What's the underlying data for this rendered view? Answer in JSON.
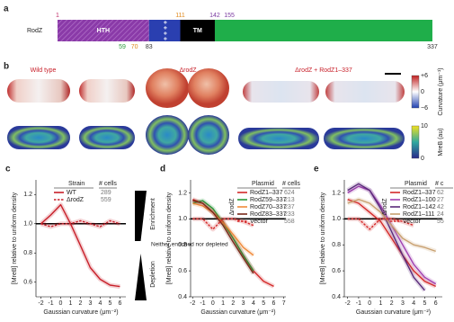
{
  "panel_a": {
    "label": "a",
    "protein": "RodZ",
    "top_positions": [
      {
        "value": 1,
        "color": "#c0306a"
      },
      {
        "value": 111,
        "color": "#e08a1e"
      },
      {
        "value": 142,
        "color": "#7a3aa0"
      },
      {
        "value": 155,
        "color": "#7a3aa0"
      }
    ],
    "bottom_positions": [
      {
        "value": 59,
        "color": "#2a9a3a"
      },
      {
        "value": 70,
        "color": "#e08a1e"
      },
      {
        "value": 83,
        "color": "#333333"
      },
      {
        "value": 337,
        "color": "#333333"
      }
    ],
    "domains": [
      {
        "label": "HTH",
        "color": "#8a3aa8"
      },
      {
        "label": "+ + + +",
        "color": "#2a3fb0"
      },
      {
        "label": "TM",
        "color": "#000000"
      },
      {
        "label": null,
        "color": "#1fae4a"
      }
    ]
  },
  "panel_b": {
    "label": "b",
    "conditions": [
      "Wild type",
      "ΔrodZ",
      "ΔrodZ + RodZ1–337"
    ],
    "curvature_bar": {
      "ticks": [
        "+6",
        "0",
        "−6"
      ],
      "title": "Curvature (μm⁻¹)"
    },
    "mreb_bar": {
      "ticks": [
        "10",
        "0"
      ],
      "title": "MreB (au)"
    }
  },
  "chart_data": [
    {
      "type": "line",
      "panel": "c",
      "xlabel": "Gaussian curvature (μm⁻²)",
      "ylabel": "[MreB] relative to uniform density",
      "x": [
        -2,
        -1,
        0,
        1,
        2,
        3,
        4,
        5,
        6
      ],
      "xlim": [
        -2.5,
        6.6
      ],
      "xticks": [
        -2,
        -1,
        0,
        1,
        2,
        3,
        4,
        5,
        6
      ],
      "ylim": [
        0.5,
        1.3
      ],
      "yticks": [
        0.6,
        0.8,
        {
          "value": 1,
          "label": "1.0"
        },
        1.2
      ],
      "reference_line": 1,
      "legend_title": "Strain",
      "legend_count_title": "# cells",
      "annotations": [
        "Enrichment",
        "Neither enriched nor depleted",
        "Depletion"
      ],
      "series": [
        {
          "name": "WT",
          "color": "#c8202a",
          "dash": false,
          "cells": 289,
          "values": [
            1.0,
            1.06,
            1.13,
            1.0,
            0.85,
            0.7,
            0.62,
            0.58,
            0.57
          ]
        },
        {
          "name": "ΔrodZ",
          "color": "#c8202a",
          "dash": true,
          "cells": 559,
          "values": [
            1.0,
            0.98,
            1.0,
            1.0,
            1.02,
            1.0,
            0.98,
            1.02,
            1.0
          ]
        }
      ]
    },
    {
      "type": "line",
      "panel": "d",
      "xlabel": "Gaussian curvature (μm⁻²)",
      "ylabel": "[MreB] relative to uniform density",
      "x": [
        -2,
        -1,
        0,
        1,
        2,
        3,
        4,
        5,
        6
      ],
      "xlim": [
        -2.2,
        7.2
      ],
      "xticks": [
        -2,
        -1,
        0,
        1,
        2,
        3,
        4,
        5,
        6,
        7
      ],
      "ylim": [
        0.4,
        1.3
      ],
      "yticks": [
        0.4,
        0.6,
        0.8,
        {
          "value": 1,
          "label": "1.0"
        },
        1.2
      ],
      "reference_line": 1,
      "legend_title": "Plasmid",
      "legend_count_title": "# cells",
      "vertical_label": "ΔrodZ",
      "series": [
        {
          "name": "RodZ1–337",
          "color": "#d42a2a",
          "dash": false,
          "cells": 624,
          "values": [
            1.15,
            1.12,
            1.05,
            0.98,
            0.85,
            0.72,
            0.6,
            0.52,
            0.48
          ]
        },
        {
          "name": "RodZ59–337",
          "color": "#2a9a3a",
          "dash": false,
          "cells": 213,
          "values": [
            1.12,
            1.14,
            1.08,
            0.97,
            0.85,
            0.72,
            0.6,
            null,
            null
          ]
        },
        {
          "name": "RodZ70–337",
          "color": "#f08a3a",
          "dash": false,
          "cells": 237,
          "values": [
            1.12,
            1.1,
            1.05,
            0.97,
            0.88,
            0.78,
            0.72,
            null,
            null
          ]
        },
        {
          "name": "RodZ83–337",
          "color": "#7a2a1a",
          "dash": false,
          "cells": 233,
          "values": [
            1.14,
            1.12,
            1.05,
            0.95,
            0.82,
            0.7,
            0.58,
            null,
            null
          ]
        },
        {
          "name": "Vector",
          "color": "#d42a2a",
          "dash": true,
          "cells": 558,
          "values": [
            1.0,
            1.0,
            0.92,
            1.0,
            1.0,
            0.98,
            0.95,
            null,
            null
          ]
        }
      ]
    },
    {
      "type": "line",
      "panel": "e",
      "xlabel": "Gaussian curvature (μm⁻²)",
      "ylabel": "[MreB] relative to uniform density",
      "x": [
        -2,
        -1,
        0,
        1,
        2,
        3,
        4,
        5,
        6
      ],
      "xlim": [
        -2.3,
        6.6
      ],
      "xticks": [
        -2,
        -1,
        0,
        1,
        2,
        3,
        4,
        5,
        6
      ],
      "ylim": [
        0.4,
        1.3
      ],
      "yticks": [
        0.4,
        0.6,
        0.8,
        {
          "value": 1,
          "label": "1.0"
        },
        1.2
      ],
      "reference_line": 1,
      "legend_title": "Plasmid",
      "legend_count_title": "# c",
      "vertical_label": "ΔrodZ",
      "series": [
        {
          "name": "RodZ1–337",
          "color": "#d42a2a",
          "dash": false,
          "cells": 62,
          "values": [
            1.15,
            1.12,
            1.05,
            0.98,
            0.85,
            0.72,
            0.6,
            0.52,
            0.48
          ]
        },
        {
          "name": "RodZ1–100",
          "color": "#a040b0",
          "dash": false,
          "cells": 27,
          "values": [
            1.2,
            1.25,
            1.22,
            1.1,
            0.95,
            0.8,
            0.65,
            0.55,
            0.5
          ]
        },
        {
          "name": "RodZ1–142",
          "color": "#5a2a7a",
          "dash": false,
          "cells": 42,
          "values": [
            1.22,
            1.27,
            1.22,
            1.08,
            0.9,
            0.72,
            0.55,
            0.45,
            null
          ]
        },
        {
          "name": "RodZ1–111",
          "color": "#c8a070",
          "dash": false,
          "cells": 24,
          "values": [
            1.12,
            1.15,
            1.12,
            1.05,
            0.95,
            0.85,
            0.8,
            0.78,
            0.75
          ]
        },
        {
          "name": "Vector",
          "color": "#d42a2a",
          "dash": true,
          "cells": 55,
          "values": [
            1.0,
            1.0,
            0.92,
            1.0,
            1.0,
            0.98,
            0.95,
            null,
            null
          ]
        }
      ]
    }
  ]
}
